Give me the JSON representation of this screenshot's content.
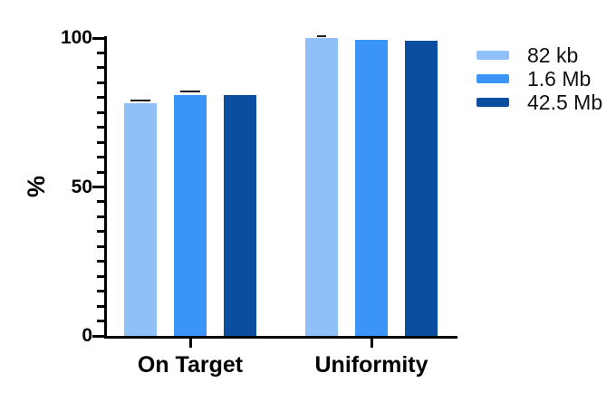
{
  "chart_data": {
    "type": "bar",
    "title": "",
    "xlabel": "",
    "ylabel": "%",
    "categories": [
      "On Target",
      "Uniformity"
    ],
    "series": [
      {
        "name": "82 kb",
        "color": "#8FC1F8",
        "values": [
          78,
          100
        ],
        "errors": [
          1,
          0.5
        ]
      },
      {
        "name": "1.6 Mb",
        "color": "#3B95F8",
        "values": [
          81,
          99.5
        ],
        "errors": [
          1,
          0
        ]
      },
      {
        "name": "42.5 Mb",
        "color": "#0B4EA0",
        "values": [
          81,
          99
        ],
        "errors": [
          0,
          0
        ]
      }
    ],
    "ylim": [
      0,
      100
    ],
    "yticks_major": [
      0,
      50,
      100
    ],
    "ytick_minor_step": 5,
    "grid": false,
    "legend_position": "right",
    "axis_color": "#000000",
    "error_bar_color": "#1a1a1a"
  }
}
